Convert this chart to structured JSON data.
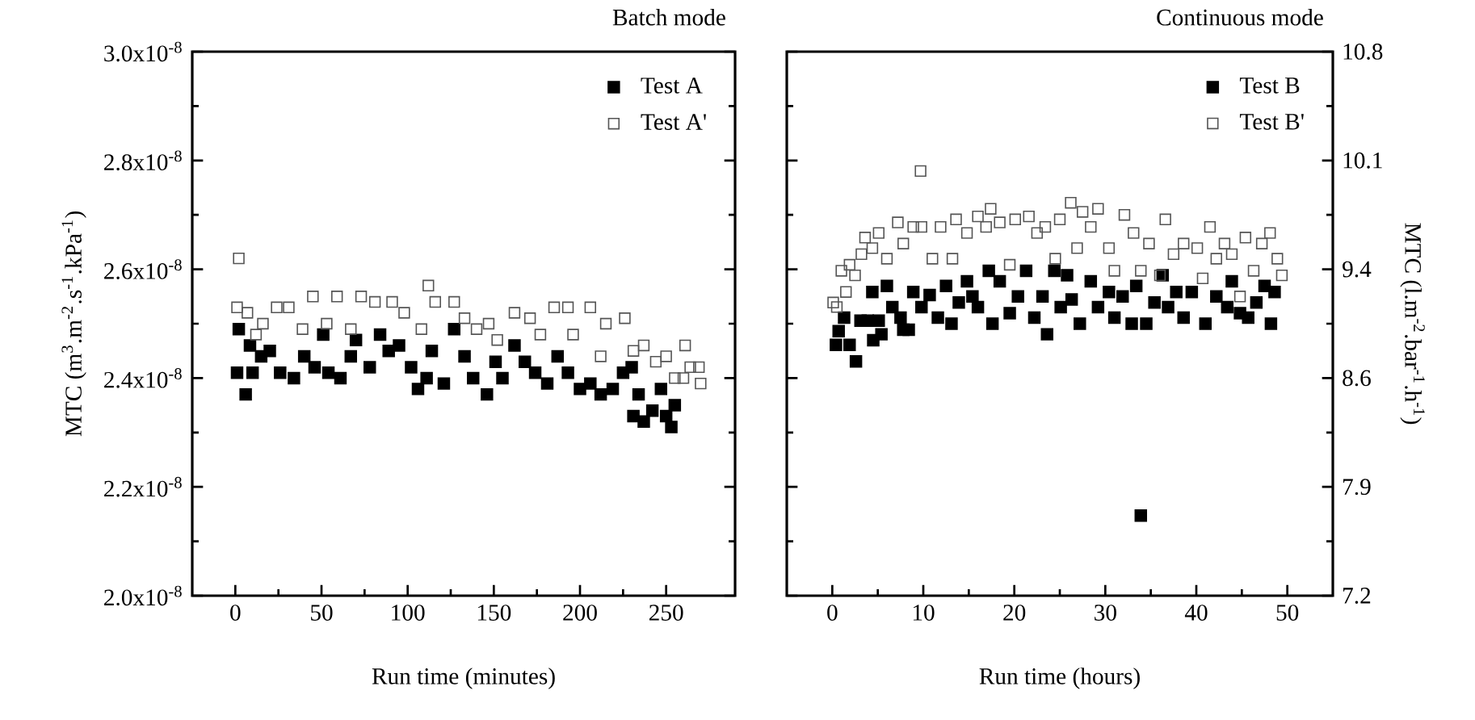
{
  "chart_data": [
    {
      "type": "scatter",
      "title": "Batch mode",
      "xlabel": "Run time (minutes)",
      "ylabel": "MTC (m$^{3}$.m$^{-2}$.s$^{-1}$.kPa$^{-1}$)",
      "marker": "square",
      "legend": "top right",
      "xlim": [
        -25,
        290
      ],
      "xticks": [
        0,
        50,
        100,
        150,
        200,
        250
      ],
      "ylim": [
        2e-08,
        3e-08
      ],
      "yticks": [
        {
          "value": 2e-08,
          "label": "2.0x10$^{-8}$"
        },
        {
          "value": 2.2e-08,
          "label": "2.2x10$^{-8}$"
        },
        {
          "value": 2.4e-08,
          "label": "2.4x10$^{-8}$"
        },
        {
          "value": 2.6e-08,
          "label": "2.6x10$^{-8}$"
        },
        {
          "value": 2.8e-08,
          "label": "2.8x10$^{-8}$"
        },
        {
          "value": 3e-08,
          "label": "3.0x10$^{-8}$"
        }
      ],
      "series": [
        {
          "name": "Test A",
          "color": "#000000",
          "x": [
            1,
            2,
            6,
            8.5,
            10,
            15,
            20,
            26,
            34,
            40,
            46,
            51,
            54,
            61,
            67,
            70,
            78,
            84,
            89,
            95,
            102,
            106,
            111,
            114,
            121,
            127,
            133,
            138,
            146,
            151,
            155,
            162,
            168,
            174,
            181,
            187,
            193,
            200,
            206,
            212,
            219,
            225,
            230,
            231,
            234,
            237,
            242,
            247,
            250,
            253,
            255
          ],
          "values": [
            2.41e-08,
            2.49e-08,
            2.37e-08,
            2.46e-08,
            2.41e-08,
            2.44e-08,
            2.45e-08,
            2.41e-08,
            2.4e-08,
            2.44e-08,
            2.42e-08,
            2.48e-08,
            2.41e-08,
            2.4e-08,
            2.44e-08,
            2.47e-08,
            2.42e-08,
            2.48e-08,
            2.45e-08,
            2.46e-08,
            2.42e-08,
            2.38e-08,
            2.4e-08,
            2.45e-08,
            2.39e-08,
            2.49e-08,
            2.44e-08,
            2.4e-08,
            2.37e-08,
            2.43e-08,
            2.4e-08,
            2.46e-08,
            2.43e-08,
            2.41e-08,
            2.39e-08,
            2.44e-08,
            2.41e-08,
            2.38e-08,
            2.39e-08,
            2.37e-08,
            2.38e-08,
            2.41e-08,
            2.42e-08,
            2.33e-08,
            2.37e-08,
            2.32e-08,
            2.34e-08,
            2.38e-08,
            2.33e-08,
            2.31e-08,
            2.35e-08
          ]
        },
        {
          "name": "Test A'",
          "color": "#555555",
          "x": [
            1,
            2,
            7,
            12,
            16,
            24,
            31,
            39,
            45,
            53,
            59,
            67,
            73,
            81,
            91,
            98,
            108,
            112,
            116,
            127,
            133,
            140,
            147,
            152,
            162,
            171,
            177,
            185,
            193,
            196,
            206,
            212,
            215,
            226,
            231,
            237,
            244,
            250,
            255,
            260,
            261,
            264,
            269,
            270
          ],
          "values": [
            2.53e-08,
            2.62e-08,
            2.52e-08,
            2.48e-08,
            2.5e-08,
            2.53e-08,
            2.53e-08,
            2.49e-08,
            2.55e-08,
            2.5e-08,
            2.55e-08,
            2.49e-08,
            2.55e-08,
            2.54e-08,
            2.54e-08,
            2.52e-08,
            2.49e-08,
            2.57e-08,
            2.54e-08,
            2.54e-08,
            2.51e-08,
            2.49e-08,
            2.5e-08,
            2.47e-08,
            2.52e-08,
            2.51e-08,
            2.48e-08,
            2.53e-08,
            2.53e-08,
            2.48e-08,
            2.53e-08,
            2.44e-08,
            2.5e-08,
            2.51e-08,
            2.45e-08,
            2.46e-08,
            2.43e-08,
            2.44e-08,
            2.4e-08,
            2.4e-08,
            2.46e-08,
            2.42e-08,
            2.42e-08,
            2.39e-08
          ]
        }
      ]
    },
    {
      "type": "scatter",
      "title": "Continuous mode",
      "xlabel": "Run time (hours)",
      "y2label": "MTC (l.m$^{-2}$.bar$^{-1}$.h$^{-1}$)",
      "marker": "square",
      "legend": "top right",
      "xlim": [
        -5,
        55
      ],
      "xticks": [
        0,
        10,
        20,
        30,
        40,
        50
      ],
      "y2lim": [
        7.2,
        10.8
      ],
      "y2ticks": [
        7.2,
        {
          "value": 7.92,
          "label": "7.9"
        },
        {
          "value": 8.64,
          "label": "8.6"
        },
        {
          "value": 9.36,
          "label": "9.4"
        },
        {
          "value": 10.08,
          "label": "10.1"
        },
        10.8
      ],
      "series": [
        {
          "name": "Test B",
          "color": "#000000",
          "axis": "y2",
          "x": [
            0.4,
            0.7,
            1.3,
            1.9,
            2.6,
            3.1,
            3.9,
            4.4,
            4.5,
            5.1,
            5.4,
            6.0,
            6.6,
            7.5,
            7.8,
            8.4,
            8.9,
            9.8,
            10.7,
            11.6,
            12.5,
            13.1,
            13.9,
            14.8,
            15.4,
            16.0,
            17.2,
            17.6,
            18.4,
            19.5,
            20.4,
            21.3,
            22.2,
            23.1,
            23.6,
            24.4,
            25.1,
            25.8,
            26.3,
            27.2,
            28.4,
            29.2,
            30.4,
            31.0,
            31.9,
            32.9,
            33.4,
            33.9,
            34.5,
            35.4,
            36.3,
            36.9,
            37.8,
            38.6,
            39.5,
            41.0,
            42.2,
            43.4,
            43.9,
            44.8,
            45.7,
            46.6,
            47.5,
            48.2,
            48.6
          ],
          "values": [
            8.86,
            8.95,
            9.04,
            8.86,
            8.75,
            9.02,
            9.02,
            9.21,
            8.89,
            9.02,
            8.93,
            9.25,
            9.11,
            9.04,
            8.96,
            8.96,
            9.21,
            9.11,
            9.19,
            9.04,
            9.25,
            9.0,
            9.14,
            9.28,
            9.18,
            9.11,
            9.35,
            9.0,
            9.28,
            9.07,
            9.18,
            9.35,
            9.04,
            9.18,
            8.93,
            9.35,
            9.11,
            9.32,
            9.16,
            9.0,
            9.28,
            9.11,
            9.21,
            9.04,
            9.18,
            9.0,
            9.25,
            7.73,
            9.0,
            9.14,
            9.32,
            9.11,
            9.21,
            9.04,
            9.21,
            9.0,
            9.18,
            9.11,
            9.28,
            9.07,
            9.04,
            9.14,
            9.25,
            9.0,
            9.21
          ]
        },
        {
          "name": "Test B'",
          "color": "#555555",
          "axis": "y2",
          "x": [
            0.1,
            0.5,
            1.0,
            1.5,
            1.9,
            2.5,
            3.2,
            3.6,
            4.4,
            5.1,
            6.0,
            7.2,
            7.8,
            8.9,
            9.7,
            9.8,
            11.0,
            11.9,
            13.2,
            13.6,
            14.8,
            16.0,
            16.9,
            17.4,
            18.4,
            19.5,
            20.1,
            21.6,
            22.5,
            23.4,
            24.5,
            25.0,
            26.2,
            26.9,
            27.5,
            28.4,
            29.2,
            30.4,
            31.0,
            32.1,
            33.1,
            33.9,
            34.8,
            36.0,
            36.6,
            37.5,
            38.6,
            40.1,
            40.7,
            41.5,
            42.2,
            43.1,
            43.9,
            44.8,
            45.4,
            46.3,
            47.2,
            48.1,
            48.9,
            49.4
          ],
          "values": [
            9.14,
            9.11,
            9.35,
            9.21,
            9.39,
            9.32,
            9.46,
            9.57,
            9.5,
            9.6,
            9.43,
            9.67,
            9.53,
            9.64,
            10.01,
            9.64,
            9.43,
            9.64,
            9.43,
            9.69,
            9.6,
            9.71,
            9.64,
            9.76,
            9.67,
            9.39,
            9.69,
            9.71,
            9.6,
            9.64,
            9.43,
            9.69,
            9.8,
            9.5,
            9.74,
            9.64,
            9.76,
            9.5,
            9.35,
            9.72,
            9.6,
            9.35,
            9.53,
            9.32,
            9.69,
            9.46,
            9.53,
            9.5,
            9.3,
            9.64,
            9.43,
            9.53,
            9.46,
            9.18,
            9.57,
            9.35,
            9.53,
            9.6,
            9.43,
            9.32
          ]
        }
      ]
    }
  ]
}
